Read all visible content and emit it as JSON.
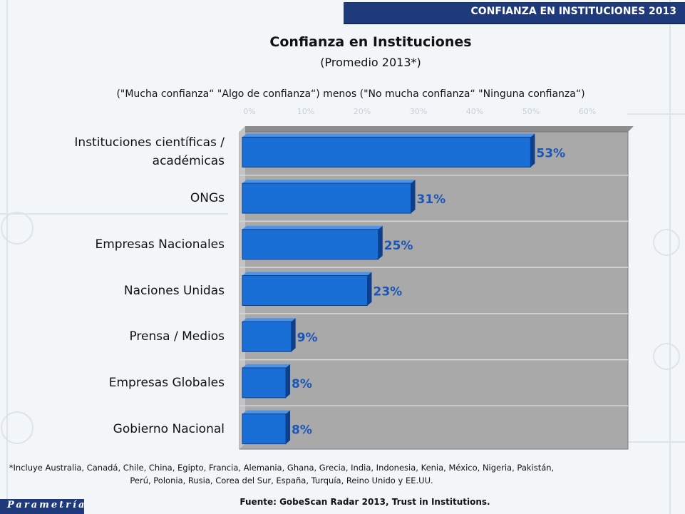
{
  "header": {
    "title": "CONFIANZA EN INSTITUCIONES 2013"
  },
  "chart_data": {
    "type": "bar",
    "orientation": "horizontal",
    "title": "Confianza en Instituciones",
    "subtitle": "(Promedio 2013*)",
    "description": "(\"Mucha confianza“ \"Algo de confianza“)  menos (\"No mucha confianza“ \"Ninguna confianza“)",
    "categories": [
      "Instituciones científicas / académicas",
      "ONGs",
      "Empresas Nacionales",
      "Naciones Unidas",
      "Prensa / Medios",
      "Empresas Globales",
      "Gobierno Nacional"
    ],
    "category_lines": [
      [
        "Instituciones científicas /",
        "académicas"
      ],
      [
        "ONGs"
      ],
      [
        "Empresas Nacionales"
      ],
      [
        "Naciones Unidas"
      ],
      [
        "Prensa / Medios"
      ],
      [
        "Empresas Globales"
      ],
      [
        "Gobierno Nacional"
      ]
    ],
    "values": [
      53,
      31,
      25,
      23,
      9,
      8,
      8
    ],
    "value_labels": [
      "53%",
      "31%",
      "25%",
      "23%",
      "9%",
      "8%",
      "8%"
    ],
    "xlim": [
      0,
      70
    ],
    "x_ticks": [
      "0%",
      "10%",
      "20%",
      "30%",
      "40%",
      "50%",
      "60%"
    ],
    "grid": true,
    "legend": "none",
    "colors": {
      "bar": "#1a6fd6",
      "bar_edge": "#0d3f8c",
      "value_label": "#1a56b8",
      "plot_bg": "#a9a9a9"
    }
  },
  "footnote": {
    "line1": "*Incluye Australia, Canadá, Chile, China, Egipto, Francia, Alemania, Ghana, Grecia, India, Indonesia, Kenia, México, Nigeria, Pakistán,",
    "line2": "Perú, Polonia, Rusia, Corea del Sur, España, Turquía, Reino Unido y EE.UU."
  },
  "source": "Fuente: GobeScan Radar 2013, Trust in Institutions.",
  "logo": {
    "text": "Parametría"
  },
  "colors": {
    "brand": "#1f3a7a"
  }
}
